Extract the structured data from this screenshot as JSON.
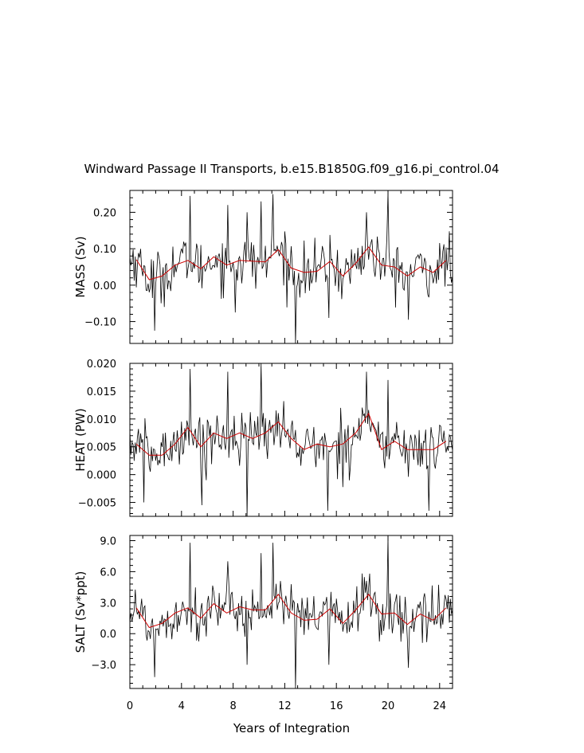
{
  "title": "Windward Passage II Transports, b.e15.B1850G.f09_g16.pi_control.04",
  "xlabel": "Years of Integration",
  "x_ticks": [
    0,
    4,
    8,
    12,
    16,
    20,
    24
  ],
  "x_tick_labels": [
    "0",
    "4",
    "8",
    "12",
    "16",
    "20",
    "24"
  ],
  "colors": {
    "raw": "#000000",
    "smooth": "#cc0000"
  },
  "chart_data": [
    {
      "type": "line",
      "ylabel": "MASS (Sv)",
      "xlim": [
        0,
        25
      ],
      "ylim": [
        -0.16,
        0.26
      ],
      "yticks": [
        0.2,
        0.1,
        0.0,
        -0.1
      ],
      "ytick_labels": [
        "0.20",
        "0.10",
        "0.00",
        "−0.10"
      ],
      "series": [
        {
          "kind": "annual-smooth",
          "x": [
            0.5,
            1.5,
            2.5,
            3.5,
            4.5,
            5.5,
            6.5,
            7.5,
            8.5,
            9.5,
            10.5,
            11.5,
            12.5,
            13.5,
            14.5,
            15.5,
            16.5,
            17.5,
            18.5,
            19.5,
            20.5,
            21.5,
            22.5,
            23.5,
            24.5
          ],
          "y": [
            0.07,
            0.015,
            0.025,
            0.055,
            0.068,
            0.045,
            0.078,
            0.055,
            0.068,
            0.066,
            0.064,
            0.098,
            0.047,
            0.035,
            0.038,
            0.065,
            0.025,
            0.06,
            0.105,
            0.055,
            0.05,
            0.025,
            0.05,
            0.035,
            0.068
          ]
        }
      ],
      "raw_spikes": {
        "max": [
          [
            4.65,
            0.245
          ],
          [
            10.2,
            0.23
          ],
          [
            11.05,
            0.25
          ],
          [
            20.0,
            0.255
          ],
          [
            7.6,
            0.22
          ],
          [
            9.1,
            0.2
          ],
          [
            18.3,
            0.2
          ]
        ],
        "min": [
          [
            1.95,
            -0.125
          ],
          [
            12.8,
            -0.16
          ],
          [
            21.6,
            -0.095
          ],
          [
            15.4,
            -0.09
          ],
          [
            8.2,
            -0.075
          ]
        ]
      }
    },
    {
      "type": "line",
      "ylabel": "HEAT (PW)",
      "xlim": [
        0,
        25
      ],
      "ylim": [
        -0.0075,
        0.02
      ],
      "yticks": [
        0.02,
        0.015,
        0.01,
        0.005,
        0.0,
        -0.005
      ],
      "ytick_labels": [
        "0.020",
        "0.015",
        "0.010",
        "0.005",
        "0.000",
        "−0.005"
      ],
      "series": [
        {
          "kind": "annual-smooth",
          "x": [
            0.5,
            1.5,
            2.5,
            3.5,
            4.5,
            5.5,
            6.5,
            7.5,
            8.5,
            9.5,
            10.5,
            11.5,
            12.5,
            13.5,
            14.5,
            15.5,
            16.5,
            17.5,
            18.5,
            19.5,
            20.5,
            21.5,
            22.5,
            23.5,
            24.5
          ],
          "y": [
            0.0055,
            0.0035,
            0.0035,
            0.0055,
            0.0085,
            0.005,
            0.0075,
            0.0065,
            0.0075,
            0.0065,
            0.0075,
            0.0095,
            0.0065,
            0.0045,
            0.0055,
            0.005,
            0.0055,
            0.0075,
            0.011,
            0.0045,
            0.006,
            0.0045,
            0.0045,
            0.0045,
            0.006
          ]
        }
      ],
      "raw_spikes": {
        "max": [
          [
            10.2,
            0.02
          ],
          [
            4.65,
            0.019
          ],
          [
            18.3,
            0.0185
          ],
          [
            7.6,
            0.0185
          ],
          [
            20.0,
            0.017
          ]
        ],
        "min": [
          [
            9.1,
            -0.0075
          ],
          [
            15.3,
            -0.0065
          ],
          [
            23.2,
            -0.0065
          ],
          [
            5.6,
            -0.0055
          ],
          [
            1.1,
            -0.005
          ]
        ]
      }
    },
    {
      "type": "line",
      "ylabel": "SALT (Sv*ppt)",
      "xlim": [
        0,
        25
      ],
      "ylim": [
        -5.3,
        9.5
      ],
      "yticks": [
        9.0,
        6.0,
        3.0,
        0.0,
        -3.0
      ],
      "ytick_labels": [
        "9.0",
        "6.0",
        "3.0",
        "0.0",
        "−3.0"
      ],
      "series": [
        {
          "kind": "annual-smooth",
          "x": [
            0.5,
            1.5,
            2.5,
            3.5,
            4.5,
            5.5,
            6.5,
            7.5,
            8.5,
            9.5,
            10.5,
            11.5,
            12.5,
            13.5,
            14.5,
            15.5,
            16.5,
            17.5,
            18.5,
            19.5,
            20.5,
            21.5,
            22.5,
            23.5,
            24.5
          ],
          "y": [
            2.5,
            0.6,
            1.0,
            2.0,
            2.5,
            1.5,
            2.9,
            2.0,
            2.6,
            2.3,
            2.3,
            3.8,
            2.0,
            1.3,
            1.4,
            2.4,
            1.0,
            2.3,
            3.8,
            1.9,
            2.0,
            0.9,
            1.9,
            1.3,
            2.5
          ]
        }
      ],
      "raw_spikes": {
        "max": [
          [
            4.65,
            8.8
          ],
          [
            10.2,
            7.8
          ],
          [
            11.05,
            8.8
          ],
          [
            20.0,
            9.3
          ],
          [
            7.6,
            7.0
          ]
        ],
        "min": [
          [
            1.95,
            -4.2
          ],
          [
            12.8,
            -5.3
          ],
          [
            21.6,
            -3.3
          ],
          [
            15.4,
            -3.0
          ],
          [
            9.1,
            -3.0
          ]
        ]
      }
    }
  ]
}
